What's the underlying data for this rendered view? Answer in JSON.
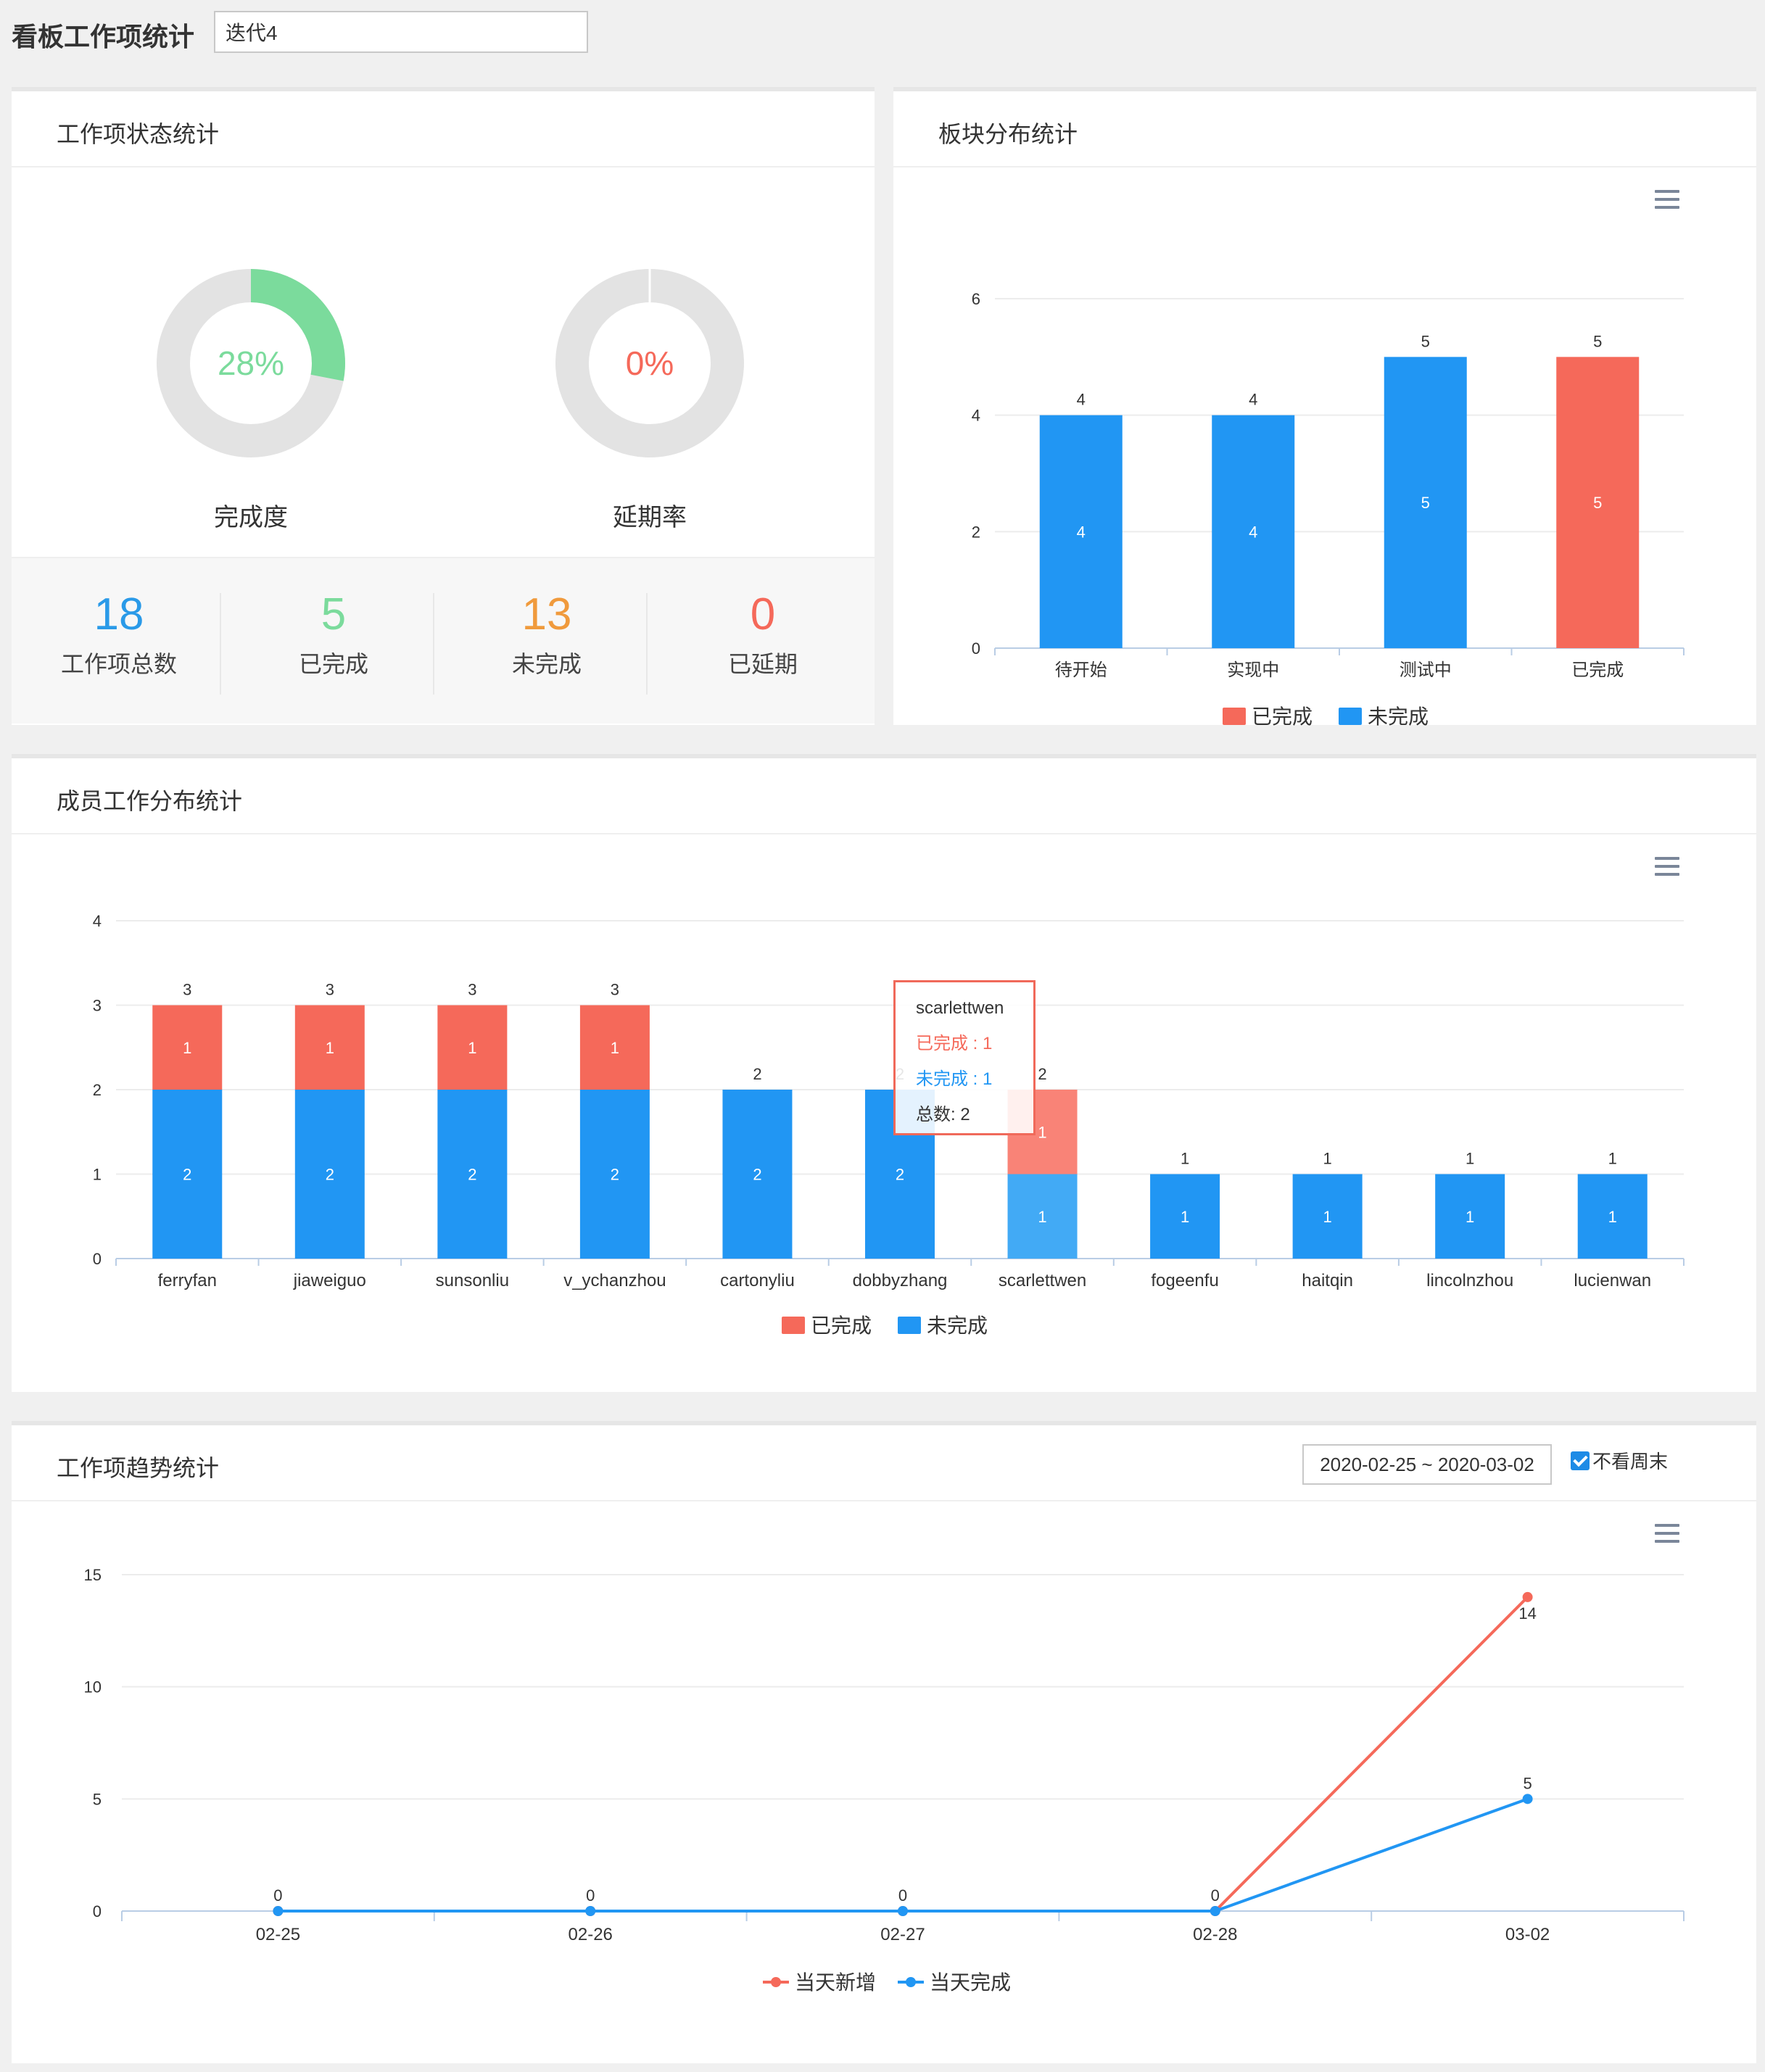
{
  "header": {
    "title": "看板工作项统计",
    "iteration_value": "迭代4"
  },
  "colors": {
    "done": "#f5695a",
    "undone": "#2196f3",
    "green": "#7bdb9c",
    "red": "#f5695a",
    "orange": "#f09a3c",
    "blue": "#2a9ae8",
    "grey": "#e3e3e3"
  },
  "status_card": {
    "title": "工作项状态统计",
    "completion": {
      "pct": 0.28,
      "label_pct": "28%",
      "label": "完成度"
    },
    "delay": {
      "pct": 0,
      "label_pct": "0%",
      "label": "延期率"
    },
    "stats": [
      {
        "value": "18",
        "label": "工作项总数"
      },
      {
        "value": "5",
        "label": "已完成"
      },
      {
        "value": "13",
        "label": "未完成"
      },
      {
        "value": "0",
        "label": "已延期"
      }
    ]
  },
  "block_card": {
    "title": "板块分布统计"
  },
  "member_card": {
    "title": "成员工作分布统计",
    "tooltip": {
      "name": "scarlettwen",
      "done_label": "已完成",
      "done_value": "1",
      "undone_label": "未完成",
      "undone_value": "1",
      "total_label": "总数",
      "total_value": "2"
    }
  },
  "trend_card": {
    "title": "工作项趋势统计",
    "date_range": "2020-02-25 ~ 2020-03-02",
    "weekend_label": "不看周末"
  },
  "chart_data": [
    {
      "id": "block",
      "type": "bar",
      "title": "板块分布统计",
      "categories": [
        "待开始",
        "实现中",
        "测试中",
        "已完成"
      ],
      "series": [
        {
          "name": "已完成",
          "values": [
            0,
            0,
            0,
            5
          ]
        },
        {
          "name": "未完成",
          "values": [
            4,
            4,
            5,
            0
          ]
        }
      ],
      "totals": [
        4,
        4,
        5,
        5
      ],
      "yticks": [
        0,
        2,
        4,
        6
      ],
      "ylim": [
        0,
        6
      ],
      "legend": [
        "已完成",
        "未完成"
      ]
    },
    {
      "id": "member",
      "type": "bar",
      "stacked": true,
      "title": "成员工作分布统计",
      "categories": [
        "ferryfan",
        "jiaweiguo",
        "sunsonliu",
        "v_ychanzhou",
        "cartonyliu",
        "dobbyzhang",
        "scarlettwen",
        "fogeenfu",
        "haitqin",
        "lincolnzhou",
        "lucienwan"
      ],
      "series": [
        {
          "name": "已完成",
          "values": [
            1,
            1,
            1,
            1,
            0,
            0,
            1,
            0,
            0,
            0,
            0
          ]
        },
        {
          "name": "未完成",
          "values": [
            2,
            2,
            2,
            2,
            2,
            2,
            1,
            1,
            1,
            1,
            1
          ]
        }
      ],
      "totals": [
        3,
        3,
        3,
        3,
        2,
        2,
        2,
        1,
        1,
        1,
        1
      ],
      "yticks": [
        0,
        1,
        2,
        3,
        4
      ],
      "ylim": [
        0,
        4
      ],
      "legend": [
        "已完成",
        "未完成"
      ]
    },
    {
      "id": "trend",
      "type": "line",
      "title": "工作项趋势统计",
      "x": [
        "02-25",
        "02-26",
        "02-27",
        "02-28",
        "03-02"
      ],
      "series": [
        {
          "name": "当天新增",
          "values": [
            0,
            0,
            0,
            0,
            14
          ]
        },
        {
          "name": "当天完成",
          "values": [
            0,
            0,
            0,
            0,
            5
          ]
        }
      ],
      "yticks": [
        0,
        5,
        10,
        15
      ],
      "ylim": [
        0,
        15
      ],
      "legend": [
        "当天新增",
        "当天完成"
      ]
    }
  ]
}
